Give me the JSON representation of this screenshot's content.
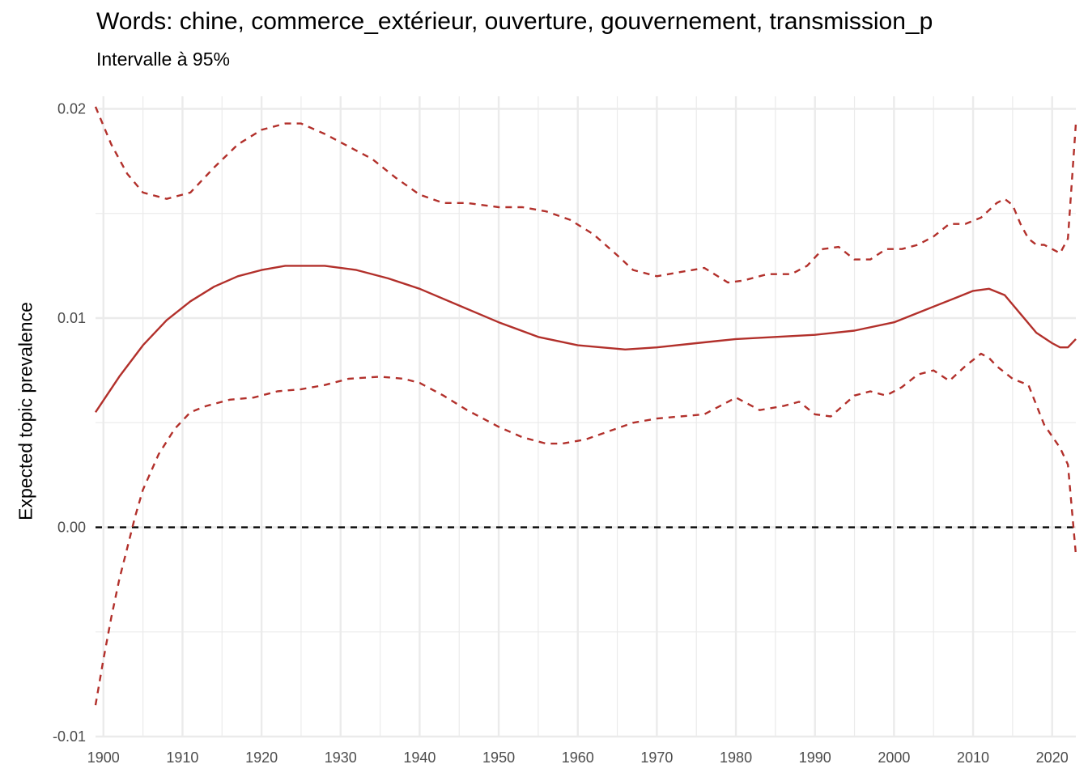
{
  "chart_data": {
    "type": "line",
    "title": "Words: chine, commerce_extérieur, ouverture, gouvernement, transmission_p",
    "subtitle": "Intervalle à 95%",
    "xlabel": "",
    "ylabel": "Expected topic prevalence",
    "xlim": [
      1899,
      2023
    ],
    "ylim": [
      -0.01,
      0.0206
    ],
    "x_ticks": [
      1900,
      1910,
      1920,
      1930,
      1940,
      1950,
      1960,
      1970,
      1980,
      1990,
      2000,
      2010,
      2020
    ],
    "y_ticks": [
      -0.01,
      0.0,
      0.01,
      0.02
    ],
    "y_tick_labels": [
      "-0.01",
      "0.00",
      "0.01",
      "0.02"
    ],
    "grid": true,
    "reference_line": {
      "y": 0.0,
      "style": "dashed",
      "color": "#000000"
    },
    "series": [
      {
        "role": "estimate",
        "style": "solid",
        "color": "#b2302b",
        "x": [
          1899,
          1902,
          1905,
          1908,
          1911,
          1914,
          1917,
          1920,
          1923,
          1925,
          1928,
          1932,
          1936,
          1940,
          1945,
          1950,
          1955,
          1960,
          1963,
          1966,
          1970,
          1975,
          1980,
          1985,
          1990,
          1995,
          2000,
          2004,
          2008,
          2010,
          2012,
          2014,
          2016,
          2018,
          2020,
          2021,
          2022,
          2023
        ],
        "y": [
          0.0055,
          0.0072,
          0.0087,
          0.0099,
          0.0108,
          0.0115,
          0.012,
          0.0123,
          0.0125,
          0.0125,
          0.0125,
          0.0123,
          0.0119,
          0.0114,
          0.0106,
          0.0098,
          0.0091,
          0.0087,
          0.0086,
          0.0085,
          0.0086,
          0.0088,
          0.009,
          0.0091,
          0.0092,
          0.0094,
          0.0098,
          0.0104,
          0.011,
          0.0113,
          0.0114,
          0.0111,
          0.0102,
          0.0093,
          0.0088,
          0.0086,
          0.0086,
          0.009
        ]
      },
      {
        "role": "upper_95",
        "style": "dashed",
        "color": "#b2302b",
        "x": [
          1899,
          1901,
          1903,
          1905,
          1908,
          1911,
          1914,
          1917,
          1920,
          1923,
          1925,
          1928,
          1931,
          1934,
          1937,
          1940,
          1943,
          1946,
          1950,
          1953,
          1956,
          1959,
          1962,
          1965,
          1967,
          1970,
          1973,
          1976,
          1979,
          1981,
          1984,
          1987,
          1989,
          1991,
          1993,
          1995,
          1997,
          1999,
          2001,
          2003,
          2005,
          2007,
          2009,
          2011,
          2013,
          2014,
          2015,
          2016,
          2017,
          2018,
          2019,
          2020,
          2021,
          2022,
          2023
        ],
        "y": [
          0.0201,
          0.0183,
          0.0169,
          0.016,
          0.0157,
          0.016,
          0.0172,
          0.0183,
          0.019,
          0.0193,
          0.0193,
          0.0188,
          0.0182,
          0.0176,
          0.0167,
          0.0159,
          0.0155,
          0.0155,
          0.0153,
          0.0153,
          0.0151,
          0.0147,
          0.014,
          0.013,
          0.0123,
          0.012,
          0.0122,
          0.0124,
          0.0117,
          0.0118,
          0.0121,
          0.0121,
          0.0125,
          0.0133,
          0.0134,
          0.0128,
          0.0128,
          0.0133,
          0.0133,
          0.0135,
          0.0139,
          0.0145,
          0.0145,
          0.0148,
          0.0155,
          0.0157,
          0.0154,
          0.0145,
          0.0138,
          0.0135,
          0.0135,
          0.0133,
          0.0131,
          0.0138,
          0.0193
        ]
      },
      {
        "role": "lower_95",
        "style": "dashed",
        "color": "#b2302b",
        "x": [
          1899,
          1900,
          1901,
          1902,
          1903,
          1904,
          1905,
          1907,
          1909,
          1911,
          1913,
          1916,
          1919,
          1922,
          1925,
          1928,
          1931,
          1935,
          1938,
          1940,
          1943,
          1946,
          1950,
          1953,
          1956,
          1958,
          1961,
          1964,
          1967,
          1970,
          1973,
          1976,
          1979,
          1980,
          1983,
          1986,
          1988,
          1990,
          1992,
          1995,
          1997,
          1999,
          2001,
          2003,
          2005,
          2007,
          2009,
          2011,
          2012,
          2013,
          2015,
          2017,
          2019,
          2021,
          2022,
          2023
        ],
        "y": [
          -0.0085,
          -0.0063,
          -0.0043,
          -0.0025,
          -0.001,
          0.0005,
          0.0018,
          0.0035,
          0.0047,
          0.0055,
          0.0058,
          0.0061,
          0.0062,
          0.0065,
          0.0066,
          0.0068,
          0.0071,
          0.0072,
          0.0071,
          0.0069,
          0.0063,
          0.0056,
          0.0048,
          0.0043,
          0.004,
          0.004,
          0.0042,
          0.0046,
          0.005,
          0.0052,
          0.0053,
          0.0054,
          0.006,
          0.0062,
          0.0056,
          0.0058,
          0.006,
          0.0054,
          0.0053,
          0.0063,
          0.0065,
          0.0063,
          0.0067,
          0.0073,
          0.0075,
          0.007,
          0.0077,
          0.0083,
          0.0081,
          0.0077,
          0.0071,
          0.0068,
          0.0049,
          0.0038,
          0.003,
          -0.0013
        ]
      }
    ]
  }
}
